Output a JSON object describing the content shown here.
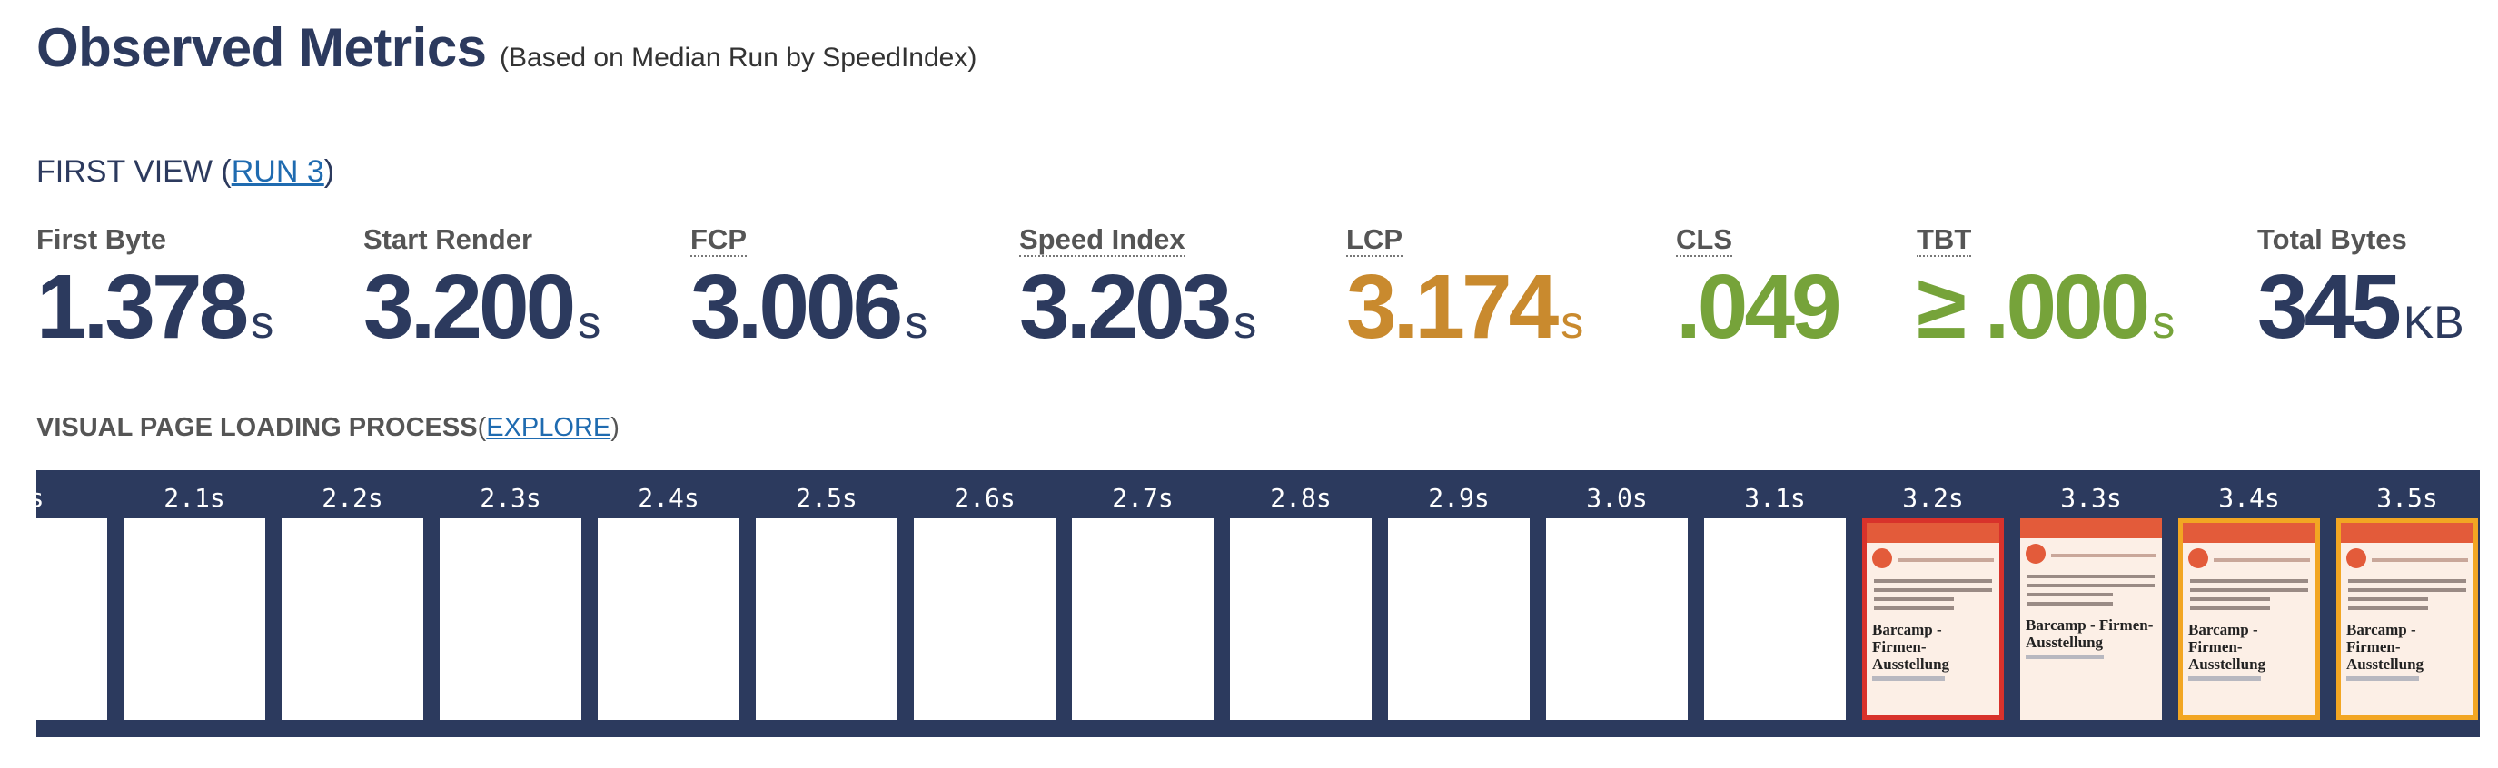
{
  "header": {
    "title": "Observed Metrics",
    "subtitle": "(Based on Median Run by SpeedIndex)"
  },
  "first_view": {
    "label": "FIRST VIEW (",
    "run_link": "RUN 3",
    "close": ")"
  },
  "metrics": [
    {
      "label": "First Byte",
      "value": "1.378",
      "unit": "s",
      "color": "#2c3a5e"
    },
    {
      "label": "Start Render",
      "value": "3.200",
      "unit": "s",
      "color": "#2c3a5e"
    },
    {
      "label": "FCP",
      "value": "3.006",
      "unit": "s",
      "color": "#2c3a5e"
    },
    {
      "label": "Speed Index",
      "value": "3.203",
      "unit": "s",
      "color": "#2c3a5e"
    },
    {
      "label": "LCP",
      "value": "3.174",
      "unit": "s",
      "color": "#c98a2e"
    },
    {
      "label": "CLS",
      "value": ".049",
      "unit": "",
      "color": "#76a33a"
    },
    {
      "label": "TBT",
      "value": "≥ .000",
      "unit": "s",
      "color": "#76a33a"
    },
    {
      "label": "Total Bytes",
      "value": "345",
      "unit": "KB",
      "color": "#2c3a5e"
    }
  ],
  "visual_progress": {
    "label": "VISUAL PAGE LOADING PROCESS",
    "open": "(",
    "explore_link": "EXPLORE",
    "close": ")",
    "ticks": [
      "s",
      "2.1s",
      "2.2s",
      "2.3s",
      "2.4s",
      "2.5s",
      "2.6s",
      "2.7s",
      "2.8s",
      "2.9s",
      "3.0s",
      "3.1s",
      "3.2s",
      "3.3s",
      "3.4s",
      "3.5s"
    ],
    "frame_title": "Barcamp - Firmen-Ausstellung",
    "colors": {
      "strip": "#2c3a5e",
      "changed_border": "#d8322b",
      "lcp_border": "#f2a623"
    }
  }
}
